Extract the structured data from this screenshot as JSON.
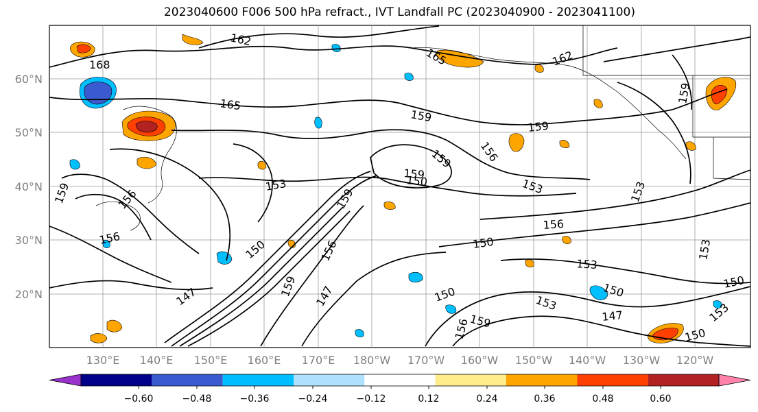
{
  "title": "2023040600 F006 500 hPa refract., IVT Landfall PC (2023040900 - 2023041100)",
  "lat_labels": [
    "60°N",
    "50°N",
    "40°N",
    "30°N",
    "20°N"
  ],
  "lon_labels": [
    "130°E",
    "140°E",
    "150°E",
    "160°E",
    "170°E",
    "180°W",
    "170°W",
    "160°W",
    "150°W",
    "140°W",
    "130°W",
    "120°W"
  ],
  "contour_labels": [
    "168",
    "162",
    "165",
    "165",
    "162",
    "159",
    "159",
    "159",
    "156",
    "159",
    "153",
    "150",
    "153",
    "159",
    "153",
    "156",
    "150",
    "150",
    "147",
    "147",
    "153",
    "150",
    "147",
    "153",
    "150",
    "156",
    "159",
    "159",
    "150",
    "153",
    "150",
    "156",
    "159",
    "156",
    "159",
    "156",
    "153"
  ],
  "colorbar": {
    "colors": [
      "#9932cc",
      "#00008b",
      "#3a5bcf",
      "#00bfff",
      "#b0e2ff",
      "#ffffff",
      "#ffec8b",
      "#ffa500",
      "#ff4000",
      "#b22222",
      "#ff82ab"
    ],
    "tick_labels": [
      "−0.60",
      "−0.48",
      "−0.36",
      "−0.24",
      "−0.12",
      "0.12",
      "0.24",
      "0.36",
      "0.48",
      "0.60"
    ]
  }
}
